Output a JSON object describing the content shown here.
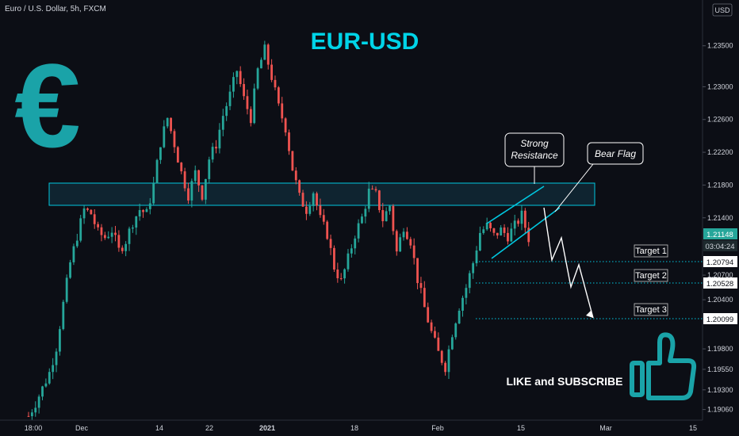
{
  "header": {
    "symbol_line": "Euro / U.S. Dollar, 5h, FXCM"
  },
  "currency_badge": "USD",
  "title": "EUR-USD",
  "euro_symbol": "€",
  "cta": "LIKE and SUBSCRIBE",
  "colors": {
    "background": "#0c0e15",
    "bull": "#26a69a",
    "bear": "#ef5350",
    "accent": "#00c8e0",
    "text": "#d1d4dc",
    "icon": "#1aa3a8"
  },
  "annotations": {
    "strong_resistance": [
      "Strong",
      "Resistance"
    ],
    "bear_flag": "Bear Flag",
    "targets": [
      {
        "label": "Target 1",
        "price": 1.20794
      },
      {
        "label": "Target 2",
        "price": 1.20528
      },
      {
        "label": "Target 3",
        "price": 1.20099
      }
    ]
  },
  "price_badges": {
    "current": "1.21148",
    "countdown": "03:04:24",
    "t1": "1.20794",
    "t2": "1.20528",
    "t3": "1.20099"
  },
  "chart_data": {
    "type": "candlestick",
    "symbol": "Euro / U.S. Dollar",
    "timeframe": "5h",
    "source": "FXCM",
    "title": "EUR-USD",
    "y_ticks": [
      1.1906,
      1.193,
      1.1955,
      1.198,
      1.204,
      1.207,
      1.214,
      1.218,
      1.222,
      1.226,
      1.23,
      1.235
    ],
    "y_range": [
      1.1893,
      1.2402
    ],
    "x_ticks": [
      "18:00",
      "Dec",
      "14",
      "22",
      "2021",
      "18",
      "Feb",
      "15",
      "Mar",
      "15"
    ],
    "last_price": 1.21148,
    "resistance_zone": [
      1.2153,
      1.2177
    ],
    "price_path": [
      [
        0,
        1.1898
      ],
      [
        2,
        1.1914
      ],
      [
        4,
        1.1932
      ],
      [
        6,
        1.1951
      ],
      [
        8,
        1.1982
      ],
      [
        10,
        1.2035
      ],
      [
        12,
        1.2085
      ],
      [
        14,
        1.2118
      ],
      [
        16,
        1.215
      ],
      [
        18,
        1.2145
      ],
      [
        20,
        1.2122
      ],
      [
        22,
        1.2116
      ],
      [
        24,
        1.2125
      ],
      [
        26,
        1.21
      ],
      [
        28,
        1.2112
      ],
      [
        30,
        1.2135
      ],
      [
        32,
        1.215
      ],
      [
        34,
        1.2145
      ],
      [
        36,
        1.218
      ],
      [
        38,
        1.2232
      ],
      [
        40,
        1.2262
      ],
      [
        42,
        1.223
      ],
      [
        44,
        1.2195
      ],
      [
        46,
        1.2168
      ],
      [
        48,
        1.2195
      ],
      [
        50,
        1.2168
      ],
      [
        52,
        1.2212
      ],
      [
        54,
        1.223
      ],
      [
        56,
        1.2265
      ],
      [
        58,
        1.229
      ],
      [
        60,
        1.232
      ],
      [
        62,
        1.2285
      ],
      [
        64,
        1.2262
      ],
      [
        66,
        1.232
      ],
      [
        68,
        1.2345
      ],
      [
        70,
        1.2312
      ],
      [
        72,
        1.2275
      ],
      [
        74,
        1.225
      ],
      [
        76,
        1.22
      ],
      [
        78,
        1.2165
      ],
      [
        80,
        1.215
      ],
      [
        82,
        1.2172
      ],
      [
        84,
        1.2138
      ],
      [
        86,
        1.212
      ],
      [
        88,
        1.208
      ],
      [
        90,
        1.2062
      ],
      [
        92,
        1.209
      ],
      [
        94,
        1.212
      ],
      [
        96,
        1.214
      ],
      [
        98,
        1.2172
      ],
      [
        100,
        1.2168
      ],
      [
        102,
        1.2138
      ],
      [
        104,
        1.2155
      ],
      [
        106,
        1.2098
      ],
      [
        108,
        1.213
      ],
      [
        110,
        1.2112
      ],
      [
        112,
        1.2065
      ],
      [
        114,
        1.203
      ],
      [
        116,
        1.2
      ],
      [
        118,
        1.1975
      ],
      [
        120,
        1.1958
      ],
      [
        122,
        1.2
      ],
      [
        124,
        1.2032
      ],
      [
        126,
        1.2055
      ],
      [
        128,
        1.2085
      ],
      [
        130,
        1.2122
      ],
      [
        132,
        1.213
      ],
      [
        134,
        1.2118
      ],
      [
        136,
        1.2125
      ],
      [
        138,
        1.2118
      ],
      [
        140,
        1.213
      ],
      [
        142,
        1.2143
      ],
      [
        144,
        1.2115
      ]
    ],
    "projection": [
      1.2115,
      1.2079,
      1.2095,
      1.2053,
      1.207,
      1.201
    ]
  }
}
